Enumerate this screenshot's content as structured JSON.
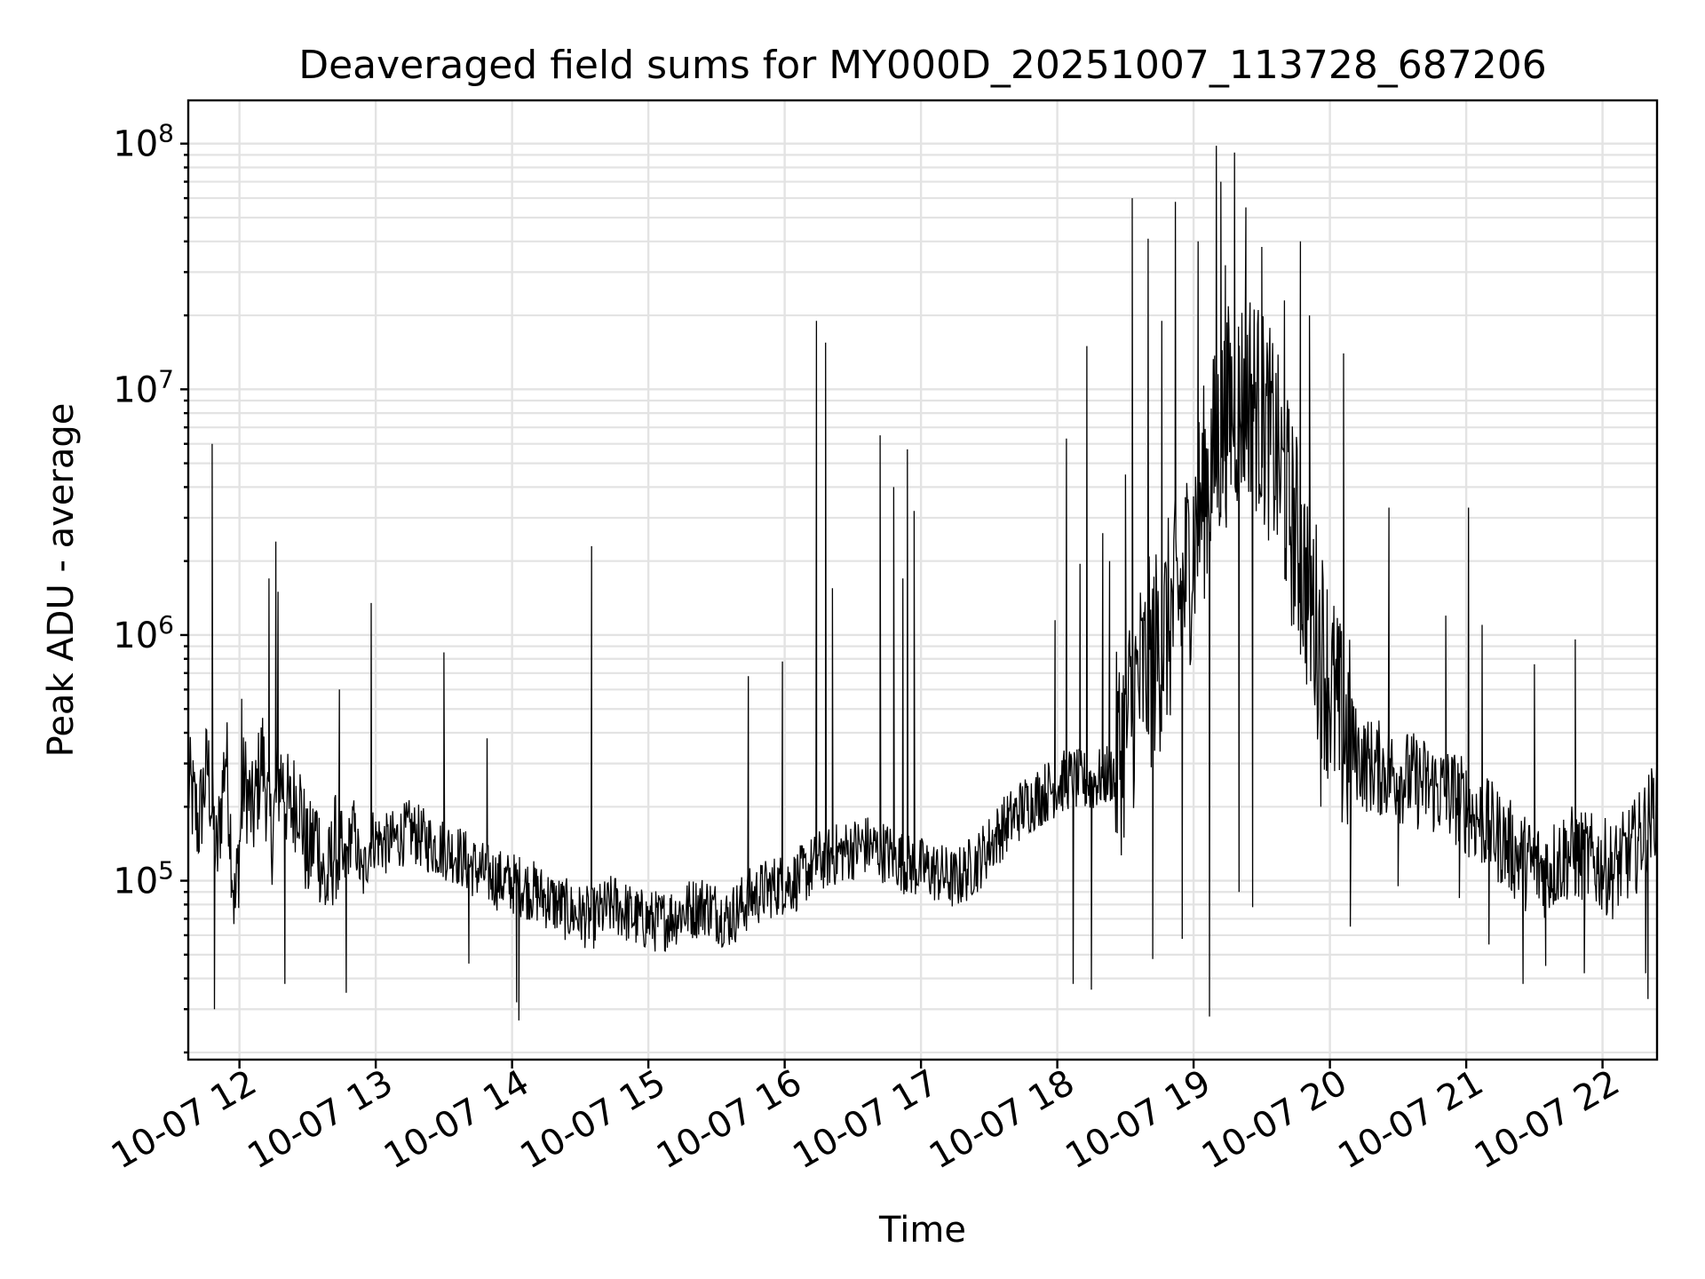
{
  "chart_data": {
    "type": "line",
    "title": "Deaveraged field sums for MY000D_20251007_113728_687206",
    "xlabel": "Time",
    "ylabel": "Peak ADU - average",
    "x_scale": "time",
    "y_scale": "log",
    "xlim": [
      "2025-10-07 11:37:28",
      "2025-10-07 22:24:00"
    ],
    "ylim": [
      18700,
      150000000
    ],
    "grid": true,
    "grid_minor_y": true,
    "legend": "none",
    "colors": {
      "line": "#000000",
      "grid": "#e3e3e3"
    },
    "x_ticks": [
      {
        "t": "2025-10-07 12:00",
        "label": "10-07 12"
      },
      {
        "t": "2025-10-07 13:00",
        "label": "10-07 13"
      },
      {
        "t": "2025-10-07 14:00",
        "label": "10-07 14"
      },
      {
        "t": "2025-10-07 15:00",
        "label": "10-07 15"
      },
      {
        "t": "2025-10-07 16:00",
        "label": "10-07 16"
      },
      {
        "t": "2025-10-07 17:00",
        "label": "10-07 17"
      },
      {
        "t": "2025-10-07 18:00",
        "label": "10-07 18"
      },
      {
        "t": "2025-10-07 19:00",
        "label": "10-07 19"
      },
      {
        "t": "2025-10-07 20:00",
        "label": "10-07 20"
      },
      {
        "t": "2025-10-07 21:00",
        "label": "10-07 21"
      },
      {
        "t": "2025-10-07 22:00",
        "label": "10-07 22"
      }
    ],
    "y_ticks": [
      {
        "value": 100000,
        "base": "10",
        "exp": "5"
      },
      {
        "value": 1000000,
        "base": "10",
        "exp": "6"
      },
      {
        "value": 10000000,
        "base": "10",
        "exp": "7"
      },
      {
        "value": 100000000,
        "base": "10",
        "exp": "8"
      }
    ],
    "series": [
      {
        "points": [
          [
            "11:38",
            240000
          ],
          [
            "11:42",
            170000
          ],
          [
            "11:46",
            300000
          ],
          [
            "11:50",
            120000
          ],
          [
            "11:54",
            350000
          ],
          [
            "11:58",
            75000
          ],
          [
            "12:02",
            260000
          ],
          [
            "12:06",
            180000
          ],
          [
            "12:10",
            330000
          ],
          [
            "12:14",
            150000
          ],
          [
            "12:18",
            280000
          ],
          [
            "12:22",
            190000
          ],
          [
            "12:26",
            230000
          ],
          [
            "12:30",
            120000
          ],
          [
            "12:34",
            160000
          ],
          [
            "12:38",
            90000
          ],
          [
            "12:42",
            140000
          ],
          [
            "12:46",
            110000
          ],
          [
            "12:50",
            170000
          ],
          [
            "12:54",
            100000
          ],
          [
            "12:58",
            150000
          ],
          [
            "13:05",
            140000
          ],
          [
            "13:15",
            160000
          ],
          [
            "13:25",
            140000
          ],
          [
            "13:35",
            130000
          ],
          [
            "13:45",
            110000
          ],
          [
            "13:55",
            100000
          ],
          [
            "14:05",
            95000
          ],
          [
            "14:15",
            85000
          ],
          [
            "14:25",
            75000
          ],
          [
            "14:35",
            70000
          ],
          [
            "14:45",
            80000
          ],
          [
            "14:55",
            70000
          ],
          [
            "15:05",
            68000
          ],
          [
            "15:15",
            75000
          ],
          [
            "15:25",
            80000
          ],
          [
            "15:35",
            70000
          ],
          [
            "15:45",
            85000
          ],
          [
            "15:55",
            95000
          ],
          [
            "16:05",
            100000
          ],
          [
            "16:15",
            120000
          ],
          [
            "16:25",
            130000
          ],
          [
            "16:35",
            140000
          ],
          [
            "16:45",
            130000
          ],
          [
            "16:55",
            115000
          ],
          [
            "17:05",
            110000
          ],
          [
            "17:15",
            100000
          ],
          [
            "17:25",
            120000
          ],
          [
            "17:35",
            160000
          ],
          [
            "17:45",
            200000
          ],
          [
            "17:55",
            230000
          ],
          [
            "18:05",
            260000
          ],
          [
            "18:15",
            250000
          ],
          [
            "18:25",
            280000
          ],
          [
            "18:35",
            600000
          ],
          [
            "18:45",
            900000
          ],
          [
            "18:55",
            1500000
          ],
          [
            "19:05",
            4000000
          ],
          [
            "19:15",
            8000000
          ],
          [
            "19:25",
            10000000
          ],
          [
            "19:35",
            6000000
          ],
          [
            "19:45",
            2500000
          ],
          [
            "19:55",
            1000000
          ],
          [
            "20:05",
            400000
          ],
          [
            "20:15",
            300000
          ],
          [
            "20:25",
            280000
          ],
          [
            "20:35",
            260000
          ],
          [
            "20:45",
            240000
          ],
          [
            "20:55",
            220000
          ],
          [
            "21:05",
            180000
          ],
          [
            "21:15",
            150000
          ],
          [
            "21:25",
            120000
          ],
          [
            "21:35",
            110000
          ],
          [
            "21:45",
            130000
          ],
          [
            "21:55",
            120000
          ],
          [
            "22:05",
            110000
          ],
          [
            "22:15",
            140000
          ],
          [
            "22:23",
            200000
          ]
        ],
        "spikes": [
          [
            "11:48",
            6000000
          ],
          [
            "11:49",
            30000
          ],
          [
            "12:01",
            550000
          ],
          [
            "12:13",
            1700000
          ],
          [
            "12:16",
            2400000
          ],
          [
            "12:17",
            1500000
          ],
          [
            "12:20",
            38000
          ],
          [
            "12:44",
            600000
          ],
          [
            "12:47",
            35000
          ],
          [
            "12:58",
            1350000
          ],
          [
            "13:30",
            850000
          ],
          [
            "13:41",
            46000
          ],
          [
            "13:49",
            380000
          ],
          [
            "14:02",
            32000
          ],
          [
            "14:03",
            27000
          ],
          [
            "14:35",
            2300000
          ],
          [
            "15:44",
            680000
          ],
          [
            "15:59",
            780000
          ],
          [
            "16:14",
            19000000
          ],
          [
            "16:18",
            15500000
          ],
          [
            "16:21",
            1550000
          ],
          [
            "16:42",
            6500000
          ],
          [
            "16:48",
            4000000
          ],
          [
            "16:52",
            1700000
          ],
          [
            "16:54",
            5700000
          ],
          [
            "16:57",
            3200000
          ],
          [
            "17:59",
            1150000
          ],
          [
            "18:04",
            6300000
          ],
          [
            "18:07",
            38000
          ],
          [
            "18:10",
            1950000
          ],
          [
            "18:13",
            15000000
          ],
          [
            "18:15",
            36000
          ],
          [
            "18:20",
            2600000
          ],
          [
            "18:23",
            2000000
          ],
          [
            "18:30",
            4500000
          ],
          [
            "18:33",
            60000000
          ],
          [
            "18:40",
            41000000
          ],
          [
            "18:42",
            48000
          ],
          [
            "18:46",
            19000000
          ],
          [
            "18:52",
            58000000
          ],
          [
            "18:55",
            58000
          ],
          [
            "19:02",
            40000000
          ],
          [
            "19:07",
            28000
          ],
          [
            "19:10",
            98000000
          ],
          [
            "19:12",
            70000000
          ],
          [
            "19:14",
            32000000
          ],
          [
            "19:18",
            92000000
          ],
          [
            "19:20",
            90000
          ],
          [
            "19:23",
            55000000
          ],
          [
            "19:26",
            78000
          ],
          [
            "19:30",
            38000000
          ],
          [
            "19:40",
            23000000
          ],
          [
            "19:47",
            40000000
          ],
          [
            "19:51",
            20000000
          ],
          [
            "19:56",
            200000
          ],
          [
            "20:06",
            14000000
          ],
          [
            "20:09",
            65000
          ],
          [
            "20:26",
            3300000
          ],
          [
            "20:30",
            95000
          ],
          [
            "20:51",
            1200000
          ],
          [
            "20:57",
            85000
          ],
          [
            "21:01",
            3300000
          ],
          [
            "21:07",
            1100000
          ],
          [
            "21:10",
            55000
          ],
          [
            "21:25",
            38000
          ],
          [
            "21:30",
            760000
          ],
          [
            "21:35",
            45000
          ],
          [
            "21:48",
            960000
          ],
          [
            "21:52",
            42000
          ],
          [
            "22:19",
            42000
          ],
          [
            "22:20",
            33000
          ]
        ]
      }
    ]
  }
}
